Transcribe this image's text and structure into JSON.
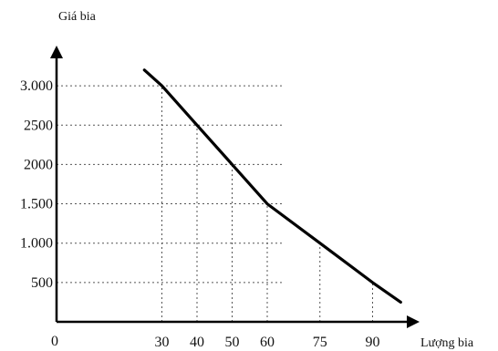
{
  "chart_data": {
    "type": "line",
    "title": "",
    "xlabel": "Lượng bia",
    "ylabel": "Giá bia",
    "origin_label": "0",
    "xlim": [
      0,
      100
    ],
    "ylim": [
      0,
      3500
    ],
    "x_ticks": [
      {
        "value": 30,
        "label": "30"
      },
      {
        "value": 40,
        "label": "40"
      },
      {
        "value": 50,
        "label": "50"
      },
      {
        "value": 60,
        "label": "60"
      },
      {
        "value": 75,
        "label": "75"
      },
      {
        "value": 90,
        "label": "90"
      }
    ],
    "y_ticks": [
      {
        "value": 500,
        "label": "500"
      },
      {
        "value": 1000,
        "label": "1.000"
      },
      {
        "value": 1500,
        "label": "1.500"
      },
      {
        "value": 2000,
        "label": "2000"
      },
      {
        "value": 2500,
        "label": "2500"
      },
      {
        "value": 3000,
        "label": "3.000"
      }
    ],
    "grid": "dotted",
    "series": [
      {
        "x": [
          25,
          30,
          40,
          50,
          60,
          75,
          90,
          98
        ],
        "y": [
          3200,
          3000,
          2500,
          2000,
          1500,
          1000,
          500,
          250
        ]
      }
    ]
  }
}
